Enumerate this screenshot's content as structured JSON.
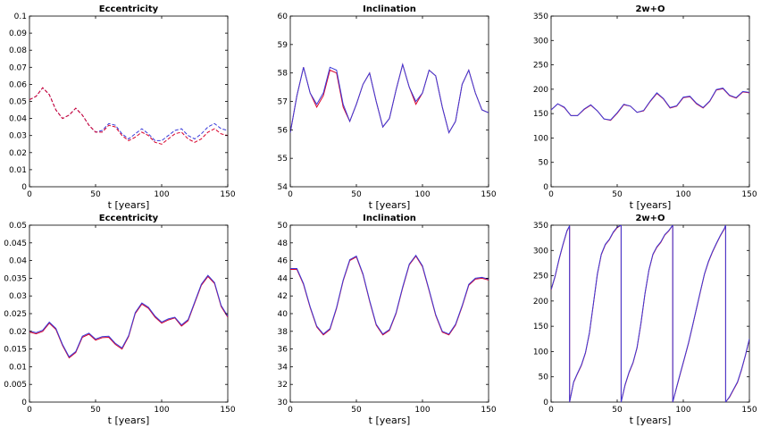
{
  "colors": {
    "blue": "#3b3bd9",
    "red": "#d8002a",
    "axis": "#000000"
  },
  "chart_data": [
    {
      "type": "line",
      "title": "Eccentricity",
      "xlabel": "t [years]",
      "ylabel": "",
      "xlim": [
        0,
        150
      ],
      "ylim": [
        0,
        0.1
      ],
      "xticks": [
        "0",
        "50",
        "100",
        "150"
      ],
      "yticks": [
        "0",
        "0.01",
        "0.02",
        "0.03",
        "0.04",
        "0.05",
        "0.06",
        "0.07",
        "0.08",
        "0.09",
        "0.1"
      ],
      "grid": false,
      "series": [
        {
          "color": "#3b3bd9",
          "dash": "4,2",
          "x": [
            0,
            5,
            10,
            15,
            20,
            25,
            30,
            35,
            40,
            45,
            50,
            55,
            60,
            65,
            70,
            75,
            80,
            85,
            90,
            95,
            100,
            105,
            110,
            115,
            120,
            125,
            130,
            135,
            140,
            145,
            150
          ],
          "y": [
            0.051,
            0.053,
            0.058,
            0.054,
            0.045,
            0.04,
            0.042,
            0.046,
            0.042,
            0.036,
            0.032,
            0.033,
            0.037,
            0.036,
            0.031,
            0.028,
            0.031,
            0.034,
            0.031,
            0.027,
            0.027,
            0.03,
            0.033,
            0.034,
            0.03,
            0.028,
            0.031,
            0.035,
            0.037,
            0.034,
            0.033
          ]
        },
        {
          "color": "#d8002a",
          "dash": "4,2",
          "x": [
            0,
            5,
            10,
            15,
            20,
            25,
            30,
            35,
            40,
            45,
            50,
            55,
            60,
            65,
            70,
            75,
            80,
            85,
            90,
            95,
            100,
            105,
            110,
            115,
            120,
            125,
            130,
            135,
            140,
            145,
            150
          ],
          "y": [
            0.051,
            0.053,
            0.058,
            0.054,
            0.045,
            0.04,
            0.042,
            0.046,
            0.042,
            0.036,
            0.032,
            0.032,
            0.036,
            0.035,
            0.03,
            0.027,
            0.029,
            0.032,
            0.03,
            0.026,
            0.025,
            0.028,
            0.031,
            0.032,
            0.028,
            0.026,
            0.028,
            0.032,
            0.034,
            0.031,
            0.03
          ]
        }
      ]
    },
    {
      "type": "line",
      "title": "Inclination",
      "xlabel": "t [years]",
      "ylabel": "",
      "xlim": [
        0,
        150
      ],
      "ylim": [
        54,
        60
      ],
      "xticks": [
        "0",
        "50",
        "100",
        "150"
      ],
      "yticks": [
        "54",
        "55",
        "56",
        "57",
        "58",
        "59",
        "60"
      ],
      "grid": false,
      "series": [
        {
          "color": "#d8002a",
          "x": [
            0,
            5,
            10,
            15,
            20,
            25,
            30,
            35,
            40,
            45,
            50,
            55,
            60,
            65,
            70,
            75,
            80,
            85,
            90,
            95,
            100,
            105,
            110,
            115,
            120,
            125,
            130,
            135,
            140,
            145,
            150
          ],
          "y": [
            55.9,
            57.2,
            58.2,
            57.3,
            56.8,
            57.2,
            58.1,
            58.0,
            56.8,
            56.3,
            56.9,
            57.6,
            58.0,
            57.0,
            56.1,
            56.4,
            57.4,
            58.3,
            57.5,
            56.9,
            57.3,
            58.1,
            57.9,
            56.8,
            55.9,
            56.3,
            57.6,
            58.1,
            57.3,
            56.7,
            56.6
          ]
        },
        {
          "color": "#3b3bd9",
          "x": [
            0,
            5,
            10,
            15,
            20,
            25,
            30,
            35,
            40,
            45,
            50,
            55,
            60,
            65,
            70,
            75,
            80,
            85,
            90,
            95,
            100,
            105,
            110,
            115,
            120,
            125,
            130,
            135,
            140,
            145,
            150
          ],
          "y": [
            55.9,
            57.2,
            58.2,
            57.3,
            56.9,
            57.3,
            58.2,
            58.1,
            56.9,
            56.3,
            56.9,
            57.6,
            58.0,
            57.0,
            56.1,
            56.4,
            57.4,
            58.3,
            57.5,
            57.0,
            57.3,
            58.1,
            57.9,
            56.8,
            55.9,
            56.3,
            57.6,
            58.1,
            57.3,
            56.7,
            56.6
          ]
        }
      ]
    },
    {
      "type": "line",
      "title": "2w+O",
      "xlabel": "t [years]",
      "ylabel": "",
      "xlim": [
        0,
        150
      ],
      "ylim": [
        0,
        360
      ],
      "xticks": [
        "0",
        "50",
        "100",
        "150"
      ],
      "yticks": [
        "0",
        "50",
        "100",
        "150",
        "200",
        "250",
        "300",
        "350"
      ],
      "grid": false,
      "series": [
        {
          "color": "#d8002a",
          "x": [
            0,
            5,
            10,
            15,
            20,
            25,
            30,
            35,
            40,
            45,
            50,
            55,
            60,
            65,
            70,
            75,
            80,
            85,
            90,
            95,
            100,
            105,
            110,
            115,
            120,
            125,
            130,
            135,
            140,
            145,
            150
          ],
          "y": [
            162,
            175,
            167,
            150,
            150,
            163,
            172,
            160,
            143,
            140,
            155,
            173,
            170,
            157,
            160,
            180,
            197,
            185,
            166,
            170,
            188,
            190,
            175,
            166,
            180,
            204,
            207,
            192,
            187,
            200,
            198
          ]
        },
        {
          "color": "#3b3bd9",
          "x": [
            0,
            5,
            10,
            15,
            20,
            25,
            30,
            35,
            40,
            45,
            50,
            55,
            60,
            65,
            70,
            75,
            80,
            85,
            90,
            95,
            100,
            105,
            110,
            115,
            120,
            125,
            130,
            135,
            140,
            145,
            150
          ],
          "y": [
            162,
            175,
            168,
            150,
            150,
            164,
            173,
            160,
            143,
            141,
            156,
            174,
            170,
            157,
            161,
            181,
            198,
            186,
            167,
            171,
            189,
            191,
            176,
            167,
            181,
            205,
            208,
            193,
            188,
            201,
            199
          ]
        }
      ]
    },
    {
      "type": "line",
      "title": "Eccentricity",
      "xlabel": "t [years]",
      "ylabel": "",
      "xlim": [
        0,
        150
      ],
      "ylim": [
        0,
        0.05
      ],
      "xticks": [
        "0",
        "50",
        "100",
        "150"
      ],
      "yticks": [
        "0",
        "0.005",
        "0.01",
        "0.015",
        "0.02",
        "0.025",
        "0.03",
        "0.035",
        "0.04",
        "0.045",
        "0.05"
      ],
      "grid": false,
      "series": [
        {
          "color": "#d8002a",
          "x": [
            0,
            5,
            10,
            15,
            20,
            25,
            30,
            35,
            40,
            45,
            50,
            55,
            60,
            65,
            70,
            75,
            80,
            85,
            90,
            95,
            100,
            105,
            110,
            115,
            120,
            125,
            130,
            135,
            140,
            145,
            150
          ],
          "y": [
            0.0198,
            0.0193,
            0.02,
            0.0223,
            0.0205,
            0.016,
            0.0125,
            0.014,
            0.0183,
            0.0192,
            0.0175,
            0.0182,
            0.0183,
            0.0163,
            0.015,
            0.0185,
            0.025,
            0.0277,
            0.0265,
            0.024,
            0.0223,
            0.0232,
            0.0238,
            0.0215,
            0.023,
            0.028,
            0.033,
            0.0355,
            0.0335,
            0.027,
            0.024
          ]
        },
        {
          "color": "#3b3bd9",
          "x": [
            0,
            5,
            10,
            15,
            20,
            25,
            30,
            35,
            40,
            45,
            50,
            55,
            60,
            65,
            70,
            75,
            80,
            85,
            90,
            95,
            100,
            105,
            110,
            115,
            120,
            125,
            130,
            135,
            140,
            145,
            150
          ],
          "y": [
            0.0201,
            0.0196,
            0.0203,
            0.0226,
            0.0208,
            0.0163,
            0.0128,
            0.0143,
            0.0186,
            0.0195,
            0.0178,
            0.0185,
            0.0186,
            0.0166,
            0.0153,
            0.0188,
            0.0253,
            0.028,
            0.0268,
            0.0243,
            0.0226,
            0.0235,
            0.024,
            0.0218,
            0.0233,
            0.0283,
            0.0333,
            0.0358,
            0.0338,
            0.0273,
            0.0243
          ]
        }
      ]
    },
    {
      "type": "line",
      "title": "Inclination",
      "xlabel": "t [years]",
      "ylabel": "",
      "xlim": [
        0,
        150
      ],
      "ylim": [
        30,
        50
      ],
      "xticks": [
        "0",
        "50",
        "100",
        "150"
      ],
      "yticks": [
        "30",
        "32",
        "34",
        "36",
        "38",
        "40",
        "42",
        "44",
        "46",
        "48",
        "50"
      ],
      "grid": false,
      "series": [
        {
          "color": "#d8002a",
          "x": [
            0,
            5,
            10,
            15,
            20,
            25,
            30,
            35,
            40,
            45,
            50,
            55,
            60,
            65,
            70,
            75,
            80,
            85,
            90,
            95,
            100,
            105,
            110,
            115,
            120,
            125,
            130,
            135,
            140,
            145,
            150
          ],
          "y": [
            45.0,
            45.0,
            43.3,
            40.7,
            38.5,
            37.6,
            38.2,
            40.6,
            43.7,
            46.0,
            46.4,
            44.4,
            41.4,
            38.7,
            37.6,
            38.1,
            40.0,
            42.9,
            45.5,
            46.5,
            45.3,
            42.6,
            39.8,
            37.9,
            37.6,
            38.7,
            40.8,
            43.2,
            43.9,
            44.0,
            43.8
          ]
        },
        {
          "color": "#3b3bd9",
          "x": [
            0,
            5,
            10,
            15,
            20,
            25,
            30,
            35,
            40,
            45,
            50,
            55,
            60,
            65,
            70,
            75,
            80,
            85,
            90,
            95,
            100,
            105,
            110,
            115,
            120,
            125,
            130,
            135,
            140,
            145,
            150
          ],
          "y": [
            45.1,
            45.1,
            43.4,
            40.8,
            38.6,
            37.7,
            38.3,
            40.7,
            43.8,
            46.1,
            46.5,
            44.5,
            41.5,
            38.8,
            37.7,
            38.2,
            40.1,
            43.0,
            45.6,
            46.6,
            45.4,
            42.7,
            39.9,
            38.0,
            37.7,
            38.8,
            40.9,
            43.3,
            44.0,
            44.1,
            43.9
          ]
        }
      ]
    },
    {
      "type": "line",
      "title": "2w+O",
      "xlabel": "t [years]",
      "ylabel": "",
      "xlim": [
        0,
        150
      ],
      "ylim": [
        0,
        360
      ],
      "xticks": [
        "0",
        "50",
        "100",
        "150"
      ],
      "yticks": [
        "0",
        "50",
        "100",
        "150",
        "200",
        "250",
        "300",
        "350"
      ],
      "grid": false,
      "series": [
        {
          "color": "#d8002a",
          "x": [
            0,
            3,
            6,
            9,
            12,
            14,
            14,
            17,
            20,
            23,
            26,
            29,
            32,
            35,
            38,
            41,
            44,
            47,
            50,
            53,
            53,
            56,
            59,
            62,
            65,
            68,
            71,
            74,
            77,
            80,
            83,
            86,
            89,
            92,
            92,
            95,
            98,
            101,
            104,
            107,
            110,
            113,
            116,
            119,
            122,
            125,
            128,
            131,
            132,
            132,
            135,
            138,
            141,
            144,
            147,
            150
          ],
          "y": [
            228,
            255,
            290,
            320,
            348,
            358,
            0,
            40,
            58,
            75,
            100,
            140,
            200,
            260,
            300,
            320,
            330,
            345,
            355,
            360,
            0,
            35,
            60,
            80,
            110,
            160,
            220,
            268,
            300,
            315,
            325,
            340,
            348,
            360,
            0,
            30,
            60,
            90,
            120,
            155,
            190,
            225,
            260,
            285,
            305,
            322,
            338,
            352,
            360,
            0,
            10,
            25,
            40,
            65,
            95,
            128
          ]
        },
        {
          "color": "#3b3bd9",
          "x": [
            0,
            3,
            6,
            9,
            12,
            14,
            14,
            17,
            20,
            23,
            26,
            29,
            32,
            35,
            38,
            41,
            44,
            47,
            50,
            53,
            53,
            56,
            59,
            62,
            65,
            68,
            71,
            74,
            77,
            80,
            83,
            86,
            89,
            92,
            92,
            95,
            98,
            101,
            104,
            107,
            110,
            113,
            116,
            119,
            122,
            125,
            128,
            131,
            132,
            132,
            135,
            138,
            141,
            144,
            147,
            150
          ],
          "y": [
            229,
            256,
            291,
            321,
            349,
            359,
            0,
            41,
            59,
            76,
            101,
            141,
            201,
            261,
            301,
            321,
            331,
            346,
            356,
            360,
            0,
            36,
            61,
            81,
            111,
            161,
            221,
            269,
            301,
            316,
            326,
            341,
            349,
            360,
            0,
            31,
            61,
            91,
            121,
            156,
            191,
            226,
            261,
            286,
            306,
            323,
            339,
            353,
            360,
            0,
            11,
            26,
            41,
            66,
            96,
            129
          ]
        }
      ]
    }
  ]
}
